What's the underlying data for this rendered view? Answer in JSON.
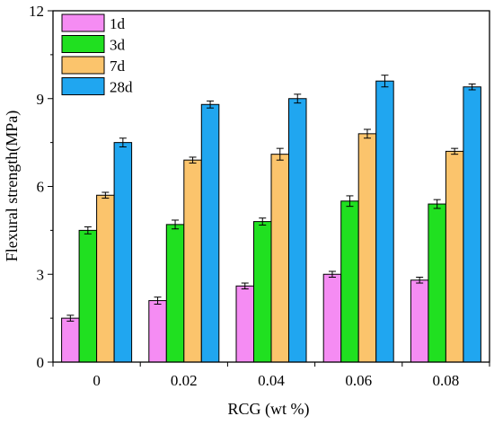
{
  "chart_data": {
    "type": "bar",
    "title": "",
    "xlabel": "RCG (wt %)",
    "ylabel": "Flexural strength(MPa)",
    "categories": [
      "0",
      "0.02",
      "0.04",
      "0.06",
      "0.08"
    ],
    "ylim": [
      0,
      12
    ],
    "yticks": [
      0,
      3,
      6,
      9,
      12
    ],
    "grid": false,
    "legend_position": "top-left",
    "series": [
      {
        "name": "1d",
        "color": "#f58cf3",
        "values": [
          1.5,
          2.1,
          2.6,
          3.0,
          2.8
        ],
        "errors": [
          0.1,
          0.12,
          0.1,
          0.1,
          0.1
        ]
      },
      {
        "name": "3d",
        "color": "#20e020",
        "values": [
          4.5,
          4.7,
          4.8,
          5.5,
          5.4
        ],
        "errors": [
          0.12,
          0.15,
          0.12,
          0.18,
          0.15
        ]
      },
      {
        "name": "7d",
        "color": "#fbc46c",
        "values": [
          5.7,
          6.9,
          7.1,
          7.8,
          7.2
        ],
        "errors": [
          0.1,
          0.1,
          0.2,
          0.15,
          0.1
        ]
      },
      {
        "name": "28d",
        "color": "#20a6f0",
        "values": [
          7.5,
          8.8,
          9.0,
          9.6,
          9.4
        ],
        "errors": [
          0.15,
          0.12,
          0.15,
          0.2,
          0.1
        ]
      }
    ]
  }
}
